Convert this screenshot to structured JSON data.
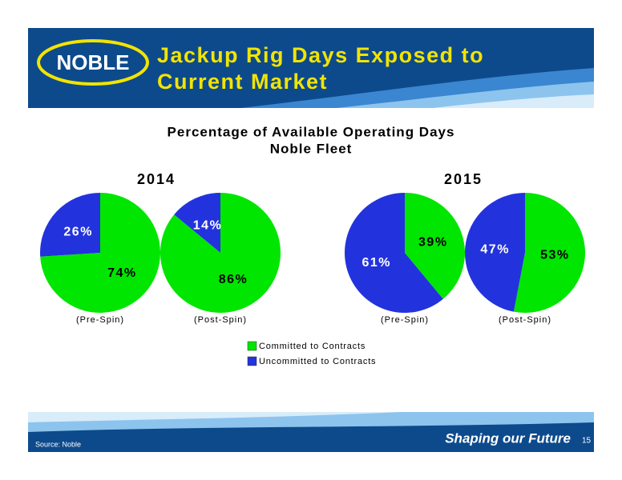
{
  "slide": {
    "logo": "NOBLE",
    "title": [
      "Jackup Rig Days Exposed to",
      "Current Market"
    ],
    "chart_title": [
      "Percentage of Available Operating Days",
      "Noble Fleet"
    ],
    "years": [
      "2014",
      "2015"
    ],
    "source": "Source: Noble",
    "tagline": "Shaping our Future",
    "page": "15"
  },
  "chart_data": [
    {
      "type": "pie",
      "label": "(Pre-Spin)",
      "categories": [
        "Committed to Contracts",
        "Uncommitted to Contracts"
      ],
      "values": [
        74,
        26
      ],
      "value_labels": [
        "74%",
        "26%"
      ],
      "colors": [
        "#00e600",
        "#2233dd"
      ]
    },
    {
      "type": "pie",
      "label": "(Post-Spin)",
      "categories": [
        "Committed to Contracts",
        "Uncommitted to Contracts"
      ],
      "values": [
        86,
        14
      ],
      "value_labels": [
        "86%",
        "14%"
      ],
      "colors": [
        "#00e600",
        "#2233dd"
      ]
    },
    {
      "type": "pie",
      "label": "(Pre-Spin)",
      "categories": [
        "Committed to Contracts",
        "Uncommitted to Contracts"
      ],
      "values": [
        39,
        61
      ],
      "value_labels": [
        "39%",
        "61%"
      ],
      "colors": [
        "#00e600",
        "#2233dd"
      ]
    },
    {
      "type": "pie",
      "label": "(Post-Spin)",
      "categories": [
        "Committed to Contracts",
        "Uncommitted to Contracts"
      ],
      "values": [
        53,
        47
      ],
      "value_labels": [
        "53%",
        "47%"
      ],
      "colors": [
        "#00e600",
        "#2233dd"
      ]
    }
  ]
}
